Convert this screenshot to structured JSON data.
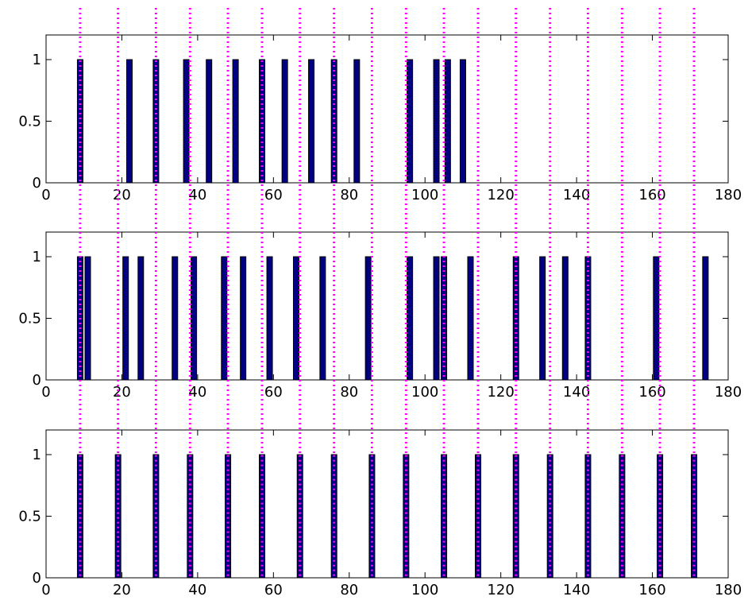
{
  "chart_data": [
    {
      "type": "bar",
      "title": "",
      "xlabel": "",
      "ylabel": "",
      "xlim": [
        0,
        180
      ],
      "ylim": [
        0,
        1.2
      ],
      "xticks": [
        "0",
        "20",
        "40",
        "60",
        "80",
        "100",
        "120",
        "140",
        "160",
        "180"
      ],
      "yticks": [
        "0",
        "0.5",
        "1"
      ],
      "x": [
        9,
        22,
        29,
        37,
        43,
        50,
        57,
        63,
        70,
        76,
        82,
        96,
        103,
        106,
        110
      ],
      "values": [
        1,
        1,
        1,
        1,
        1,
        1,
        1,
        1,
        1,
        1,
        1,
        1,
        1,
        1,
        1
      ]
    },
    {
      "type": "bar",
      "title": "",
      "xlabel": "",
      "ylabel": "",
      "xlim": [
        0,
        180
      ],
      "ylim": [
        0,
        1.2
      ],
      "xticks": [
        "0",
        "20",
        "40",
        "60",
        "80",
        "100",
        "120",
        "140",
        "160",
        "180"
      ],
      "yticks": [
        "0",
        "0.5",
        "1"
      ],
      "x": [
        9,
        11,
        21,
        25,
        34,
        39,
        47,
        52,
        59,
        66,
        73,
        85,
        96,
        103,
        105,
        112,
        124,
        131,
        137,
        143,
        161,
        174
      ],
      "values": [
        1,
        1,
        1,
        1,
        1,
        1,
        1,
        1,
        1,
        1,
        1,
        1,
        1,
        1,
        1,
        1,
        1,
        1,
        1,
        1,
        1,
        1
      ]
    },
    {
      "type": "bar",
      "title": "",
      "xlabel": "",
      "ylabel": "",
      "xlim": [
        0,
        180
      ],
      "ylim": [
        0,
        1.2
      ],
      "xticks": [
        "0",
        "20",
        "40",
        "60",
        "80",
        "100",
        "120",
        "140",
        "160",
        "180"
      ],
      "yticks": [
        "0",
        "0.5",
        "1"
      ],
      "x": [
        9,
        19,
        29,
        38,
        48,
        57,
        67,
        76,
        86,
        95,
        105,
        114,
        124,
        133,
        143,
        152,
        162,
        171
      ],
      "values": [
        1,
        1,
        1,
        1,
        1,
        1,
        1,
        1,
        1,
        1,
        1,
        1,
        1,
        1,
        1,
        1,
        1,
        1
      ]
    }
  ],
  "reference_lines": {
    "color": "#ff00ff",
    "style": "dotted",
    "x": [
      9,
      19,
      29,
      38,
      48,
      57,
      67,
      76,
      86,
      95,
      105,
      114,
      124,
      133,
      143,
      152,
      162,
      171
    ]
  },
  "colors": {
    "bar_fill": "#000080",
    "bar_edge": "#000000",
    "reference_line": "#ff00ff"
  }
}
